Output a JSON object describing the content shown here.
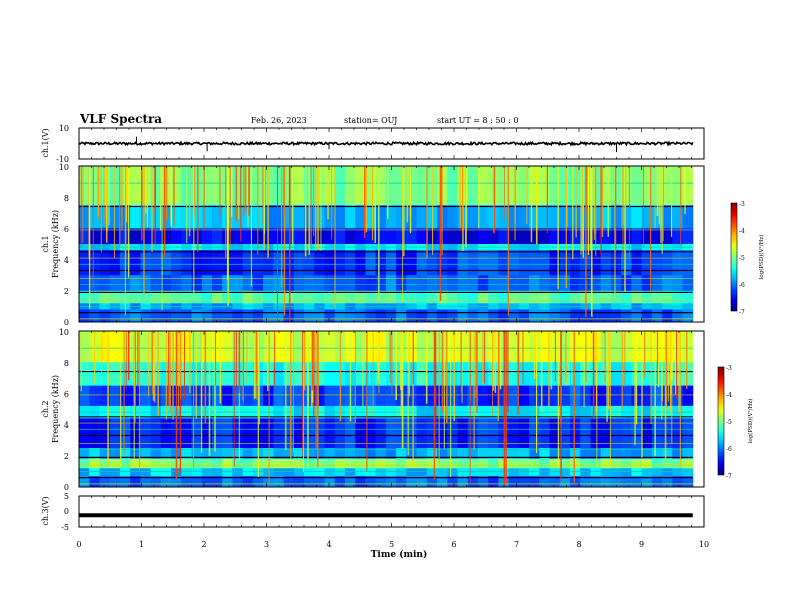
{
  "header": {
    "title": "VLF Spectra",
    "date": "Feb. 26, 2023",
    "station": "station= OUJ",
    "start": "start UT =  8 : 50 : 0"
  },
  "chart_data": [
    {
      "type": "line",
      "ylabel": "ch.1(V)",
      "ylim": [
        -10,
        10
      ],
      "y_ticks": [
        "10",
        "-10"
      ],
      "baseline": 0,
      "spikes": [
        {
          "x": 0.92,
          "y": 2.2
        },
        {
          "x": 2.05,
          "y": -2.5
        },
        {
          "x": 4.0,
          "y": -1.8
        },
        {
          "x": 8.6,
          "y": -2.8
        }
      ]
    },
    {
      "type": "heatmap",
      "name": "ch.1",
      "ylabel": "ch.1\nFrequency (kHz)",
      "ylim": [
        0,
        10
      ],
      "y_ticks": [
        "10",
        "8",
        "6",
        "4",
        "2",
        "0"
      ],
      "colorbar": {
        "label": "log(PSD)(V²/Hz)",
        "ticks": [
          "-3",
          "-4",
          "-5",
          "-6",
          "-7"
        ]
      }
    },
    {
      "type": "heatmap",
      "name": "ch.2",
      "ylabel": "ch.2\nFrequency (kHz)",
      "ylim": [
        0,
        10
      ],
      "y_ticks": [
        "10",
        "8",
        "6",
        "4",
        "2",
        "0"
      ],
      "colorbar": {
        "label": "log(PSD)(V²/Hz)",
        "ticks": [
          "-3",
          "-4",
          "-5",
          "-6",
          "-7"
        ]
      }
    },
    {
      "type": "line",
      "ylabel": "ch.3(V)",
      "ylim": [
        -5,
        5
      ],
      "y_ticks": [
        "5",
        "0",
        "-5"
      ],
      "baseline": -1.2
    }
  ],
  "xaxis": {
    "label": "Time (min)",
    "xlim": [
      0,
      10
    ],
    "ticks": [
      "0",
      "1",
      "2",
      "3",
      "4",
      "5",
      "6",
      "7",
      "8",
      "9",
      "10"
    ],
    "data_end": 9.82
  },
  "colors": {
    "low": "#0000c8",
    "mid": "#00c8c8",
    "high": "#ff0000"
  }
}
